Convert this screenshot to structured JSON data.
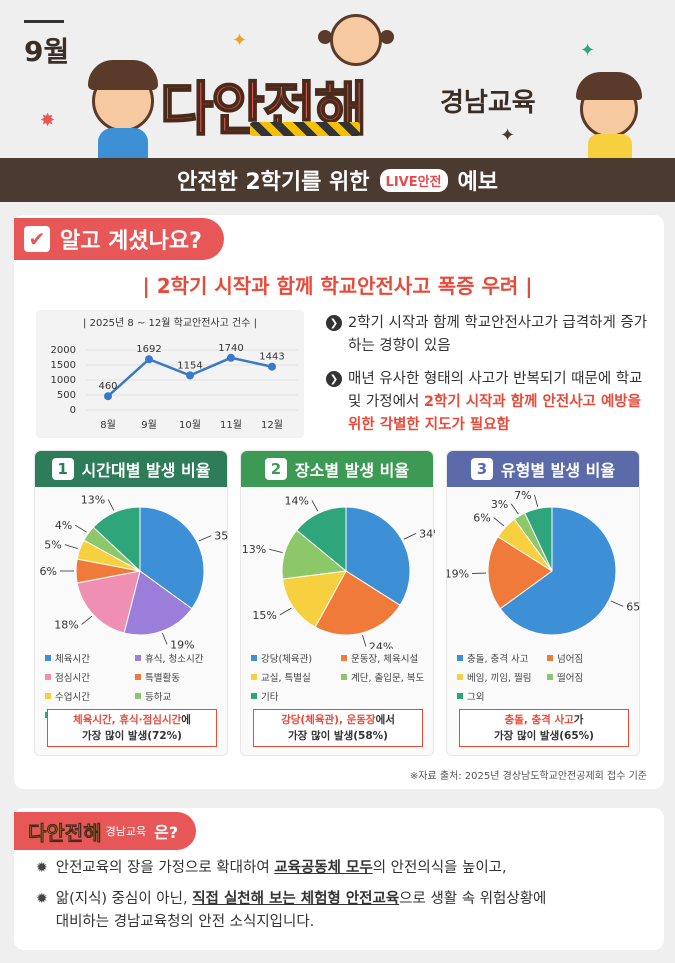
{
  "header": {
    "month": "9월",
    "title": "다안전해",
    "subtitle": "경남교육",
    "banner_pre": "안전한 2학기를 위한",
    "banner_badge": "LIVE안전",
    "banner_post": "예보"
  },
  "section1": {
    "tag": "알고 계셨나요?",
    "headline": "| 2학기 시작과 함께 학교안전사고 폭증 우려 |"
  },
  "chart_data": [
    {
      "type": "line",
      "title": "| 2025년 8 ~ 12월 학교안전사고 건수 |",
      "categories": [
        "8월",
        "9월",
        "10월",
        "11월",
        "12월"
      ],
      "values": [
        460,
        1692,
        1154,
        1740,
        1443
      ],
      "yticks": [
        "2000",
        "1500",
        "1000",
        "500",
        "0"
      ],
      "ylim": [
        0,
        2000
      ],
      "color": "#3a78c8"
    },
    {
      "type": "pie",
      "number": "1",
      "title": "시간대별 발생 비율",
      "header_color": "#2e7d5a",
      "categories": [
        "체육시간",
        "휴식, 청소시간",
        "점심시간",
        "특별활동",
        "수업시간",
        "등하교",
        "기타"
      ],
      "values": [
        35,
        19,
        18,
        6,
        5,
        4,
        13
      ],
      "labels": [
        "35%",
        "19%",
        "18%",
        "6%",
        "5%",
        "4%",
        "13%"
      ],
      "colors": [
        "#3d8fd6",
        "#9b7ed9",
        "#f08fb4",
        "#f07a3a",
        "#f7d040",
        "#8cc86a",
        "#2fa57c"
      ],
      "summary_red": "체육시간, 휴식·점심시간",
      "summary_rest": "에",
      "summary_line2": "가장 많이 발생(72%)"
    },
    {
      "type": "pie",
      "number": "2",
      "title": "장소별 발생 비율",
      "header_color": "#3d9a55",
      "categories": [
        "강당(체육관)",
        "운동장, 체육시설",
        "교실, 특별실",
        "계단, 출입문, 복도",
        "기타"
      ],
      "values": [
        34,
        24,
        15,
        13,
        14
      ],
      "labels": [
        "34%",
        "24%",
        "15%",
        "13%",
        "14%"
      ],
      "colors": [
        "#3d8fd6",
        "#f07a3a",
        "#f7d040",
        "#8cc86a",
        "#2fa57c"
      ],
      "summary_red": "강당(체육관), 운동장",
      "summary_rest": "에서",
      "summary_line2": "가장 많이 발생(58%)"
    },
    {
      "type": "pie",
      "number": "3",
      "title": "유형별 발생 비율",
      "header_color": "#5b6aa8",
      "categories": [
        "충돌, 충격 사고",
        "넘어짐",
        "베임, 끼임, 찔림",
        "떨어짐",
        "그외"
      ],
      "values": [
        65,
        19,
        6,
        3,
        7
      ],
      "labels": [
        "65%",
        "19%",
        "6%",
        "3%",
        "7%"
      ],
      "colors": [
        "#3d8fd6",
        "#f07a3a",
        "#f7d040",
        "#8cc86a",
        "#2fa57c"
      ],
      "summary_red": "충돌, 충격 사고",
      "summary_rest": "가",
      "summary_line2": "가장 많이 발생(65%)"
    }
  ],
  "bullets": [
    {
      "text": "2학기 시작과 함께 학교안전사고가 급격하게 증가하는 경향이 있음"
    },
    {
      "text_pre": "매년 유사한 형태의 사고가 반복되기 때문에 학교 및 가정에서 ",
      "text_red": "2학기 시작과 함께 안전사고 예방을 위한 각별한 지도가 필요함"
    }
  ],
  "source": "※자료 출처: 2025년 경상남도학교안전공제회 접수 기준",
  "about": {
    "logo": "다안전해",
    "logo_small": "경남교육",
    "question": "은?",
    "line1_pre": "안전교육의 장을 가정으로 확대하여 ",
    "line1_bold": "교육공동체 모두",
    "line1_post": "의 안전의식을 높이고,",
    "line2_pre": "앎(지식) 중심이 아닌, ",
    "line2_bold": "직접 실천해 보는 체험형 안전교육",
    "line2_post": "으로 생활 속 위험상황에",
    "line3": "대비하는 경남교육청의 안전 소식지입니다."
  }
}
